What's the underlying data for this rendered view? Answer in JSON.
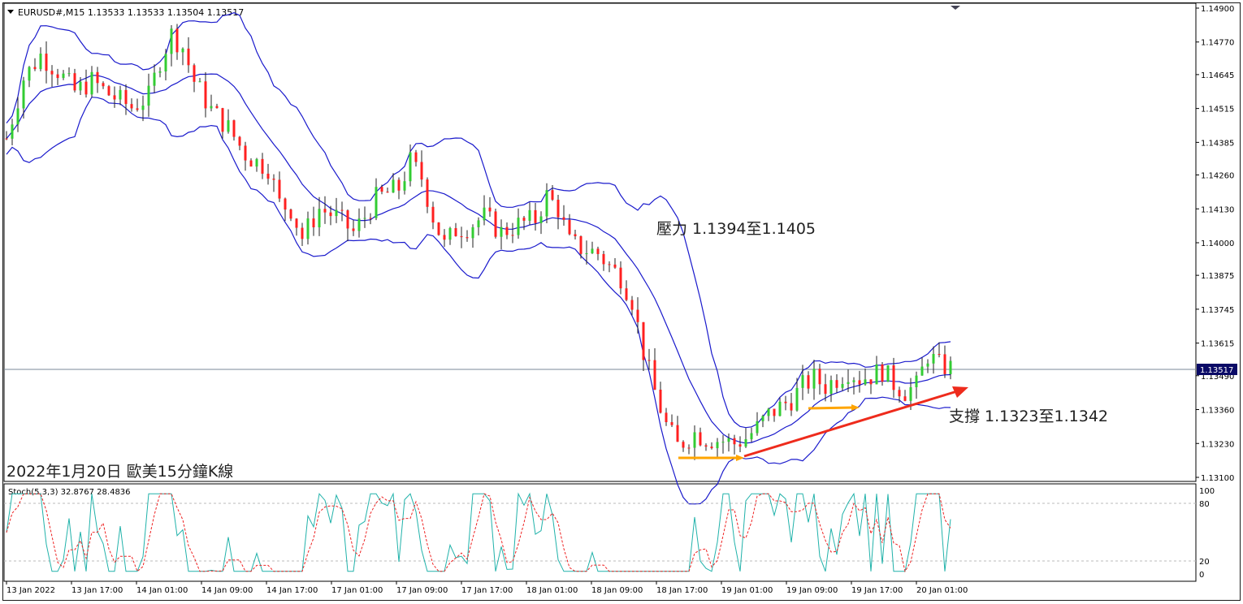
{
  "header": {
    "symbol_line": "EURUSD#,M15  1.13533 1.13533 1.13504 1.13517",
    "dropdown_icon": "triangle-down-icon"
  },
  "price_axis": {
    "ticks": [
      "1.14900",
      "1.14770",
      "1.14645",
      "1.14515",
      "1.14385",
      "1.14260",
      "1.14130",
      "1.14000",
      "1.13875",
      "1.13745",
      "1.13615",
      "1.13490",
      "1.13360",
      "1.13230",
      "1.13100"
    ],
    "current_price": "1.13517"
  },
  "annotations": {
    "resistance": "壓力 1.1394至1.1405",
    "support": "支撐 1.1323至1.1342",
    "chart_caption": "2022年1月20日 歐美15分鐘K線"
  },
  "stoch": {
    "label": "Stoch(5,3,3) 32.8767 28.4836",
    "levels": [
      "100",
      "80",
      "20",
      "0"
    ]
  },
  "time_axis": [
    "13 Jan 2022",
    "13 Jan 17:00",
    "14 Jan 01:00",
    "14 Jan 09:00",
    "14 Jan 17:00",
    "17 Jan 01:00",
    "17 Jan 09:00",
    "17 Jan 17:00",
    "18 Jan 01:00",
    "18 Jan 09:00",
    "18 Jan 17:00",
    "19 Jan 01:00",
    "19 Jan 09:00",
    "19 Jan 17:00",
    "20 Jan 01:00"
  ],
  "colors": {
    "bull": "#33cc33",
    "bear": "#ff2020",
    "wick": "#222222",
    "band": "#1a1acc",
    "support_arrow": "#ee2b1c",
    "short_arrow": "#ffa500",
    "stoch_main": "#20b2aa",
    "stoch_signal": "#ee2222",
    "price_tag_bg": "#0a0a66"
  },
  "chart_data": {
    "type": "candlestick",
    "symbol": "EURUSD#",
    "timeframe": "M15",
    "last": {
      "open": 1.13533,
      "high": 1.13533,
      "low": 1.13504,
      "close": 1.13517
    },
    "y_range": [
      1.131,
      1.149
    ],
    "close_path": [
      [
        0,
        1.144
      ],
      [
        3,
        1.1463
      ],
      [
        6,
        1.1472
      ],
      [
        9,
        1.1466
      ],
      [
        12,
        1.1458
      ],
      [
        15,
        1.1462
      ],
      [
        18,
        1.1457
      ],
      [
        22,
        1.1452
      ],
      [
        25,
        1.1456
      ],
      [
        27,
        1.147
      ],
      [
        29,
        1.148
      ],
      [
        31,
        1.1475
      ],
      [
        33,
        1.1462
      ],
      [
        36,
        1.1451
      ],
      [
        39,
        1.1444
      ],
      [
        42,
        1.1434
      ],
      [
        44,
        1.1431
      ],
      [
        46,
        1.1429
      ],
      [
        48,
        1.1415
      ],
      [
        50,
        1.1413
      ],
      [
        52,
        1.1402
      ],
      [
        55,
        1.1413
      ],
      [
        58,
        1.141
      ],
      [
        61,
        1.1404
      ],
      [
        63,
        1.141
      ],
      [
        65,
        1.1417
      ],
      [
        67,
        1.1419
      ],
      [
        69,
        1.1421
      ],
      [
        71,
        1.1431
      ],
      [
        73,
        1.1425
      ],
      [
        75,
        1.141
      ],
      [
        77,
        1.1399
      ],
      [
        79,
        1.1405
      ],
      [
        81,
        1.1406
      ],
      [
        84,
        1.141
      ],
      [
        87,
        1.1404
      ],
      [
        90,
        1.1407
      ],
      [
        93,
        1.1409
      ],
      [
        95,
        1.1418
      ],
      [
        97,
        1.1413
      ],
      [
        99,
        1.14
      ],
      [
        101,
        1.1398
      ],
      [
        104,
        1.1396
      ],
      [
        106,
        1.1391
      ],
      [
        108,
        1.1387
      ],
      [
        110,
        1.1378
      ],
      [
        112,
        1.1358
      ],
      [
        114,
        1.1343
      ],
      [
        116,
        1.133
      ],
      [
        118,
        1.1322
      ],
      [
        121,
        1.1327
      ],
      [
        123,
        1.1325
      ],
      [
        126,
        1.1324
      ],
      [
        128,
        1.1323
      ],
      [
        130,
        1.1325
      ],
      [
        132,
        1.1329
      ],
      [
        134,
        1.1334
      ],
      [
        136,
        1.1337
      ],
      [
        138,
        1.134
      ],
      [
        140,
        1.1345
      ],
      [
        142,
        1.1348
      ],
      [
        144,
        1.1345
      ],
      [
        146,
        1.1348
      ],
      [
        148,
        1.1351
      ],
      [
        150,
        1.1348
      ],
      [
        152,
        1.1349
      ],
      [
        154,
        1.1351
      ],
      [
        156,
        1.1346
      ],
      [
        158,
        1.1343
      ],
      [
        160,
        1.1345
      ],
      [
        162,
        1.1357
      ],
      [
        164,
        1.1353
      ],
      [
        166,
        1.1352
      ]
    ],
    "bollinger_bands": true,
    "resistance_zone": [
      1.1394,
      1.1405
    ],
    "support_zone": [
      1.1323,
      1.1342
    ],
    "stochastic": {
      "k_period": 5,
      "d_period": 3,
      "slowing": 3,
      "main": 32.8767,
      "signal": 28.4836,
      "levels": [
        20,
        80
      ]
    }
  }
}
